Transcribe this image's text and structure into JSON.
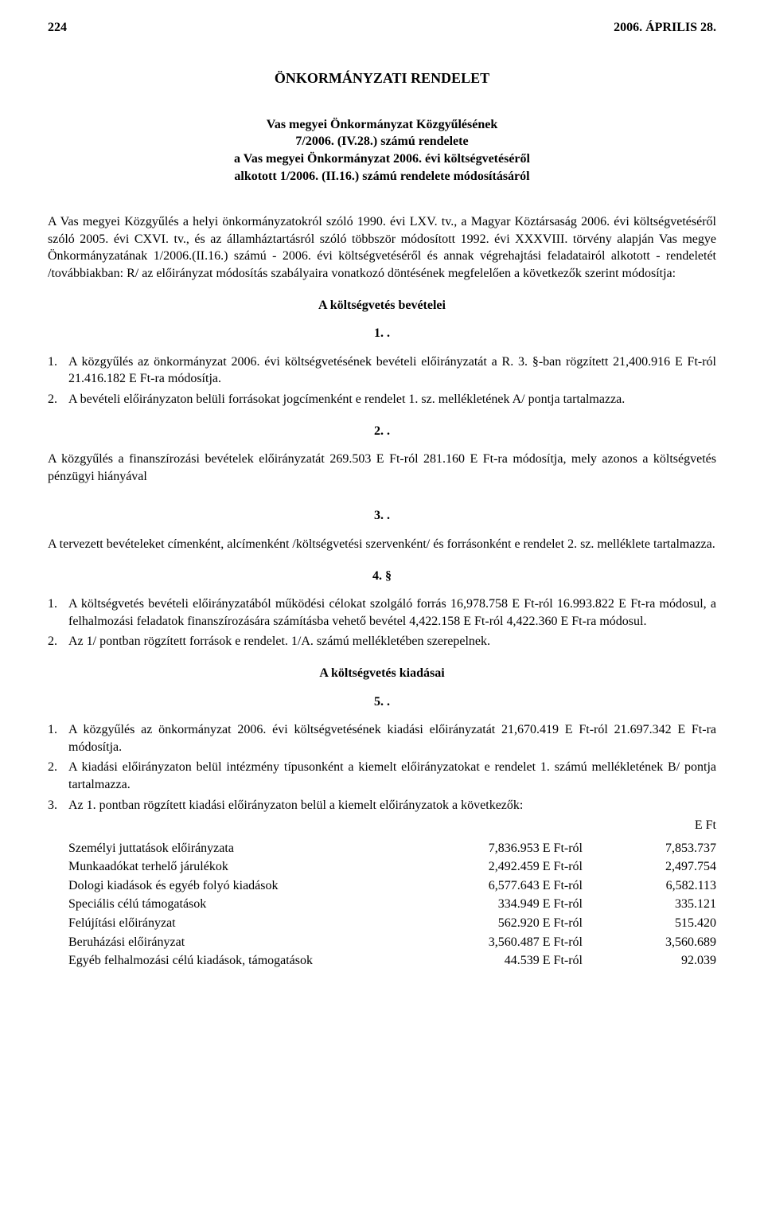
{
  "header": {
    "page_number": "224",
    "date": "2006. ÁPRILIS 28."
  },
  "title": "ÖNKORMÁNYZATI RENDELET",
  "subtitle": {
    "line1": "Vas megyei Önkormányzat Közgyűlésének",
    "line2": "7/2006. (IV.28.) számú rendelete",
    "line3": "a Vas megyei Önkormányzat 2006. évi költségvetéséről",
    "line4": "alkotott 1/2006. (II.16.) számú rendelete módosításáról"
  },
  "intro": "A Vas megyei Közgyűlés a helyi önkormányzatokról szóló 1990. évi LXV. tv., a Magyar Köztársaság 2006. évi költségvetéséről szóló 2005. évi CXVI. tv., és az államháztartásról szóló többször módosított 1992. évi XXXVIII. törvény alapján Vas megye Önkormányzatának 1/2006.(II.16.) számú - 2006. évi költségvetéséről és annak végrehajtási feladatairól alkotott - rendeletét /továbbiakban: R/ az előirányzat módosítás szabályaira vonatkozó döntésének megfelelően a következők szerint módosítja:",
  "headings": {
    "revenues": "A költségvetés bevételei",
    "expenditures": "A költségvetés kiadásai"
  },
  "sections": {
    "s1": "1. .",
    "s2": "2. .",
    "s3": "3. .",
    "s4": "4. §",
    "s5": "5. ."
  },
  "para1": {
    "item1_num": "1.",
    "item1_text": "A közgyűlés az önkormányzat 2006. évi költségvetésének bevételi előirányzatát a R. 3. §-ban rögzített 21,400.916 E Ft-ról 21.416.182 E Ft-ra módosítja.",
    "item2_num": "2.",
    "item2_text": "A bevételi előirányzaton belüli forrásokat jogcímenként e rendelet 1. sz. mellékletének A/ pontja tartalmazza."
  },
  "para2_text": "A közgyűlés a finanszírozási bevételek előirányzatát 269.503 E Ft-ról 281.160 E Ft-ra módosítja, mely azonos a költségvetés pénzügyi hiányával",
  "para3_text": "A tervezett bevételeket címenként, alcímenként /költségvetési szervenként/ és forrásonként e rendelet 2. sz. melléklete tartalmazza.",
  "para4": {
    "item1_num": "1.",
    "item1_text": "A költségvetés bevételi előirányzatából működési célokat szolgáló forrás 16,978.758 E Ft-ról 16.993.822 E Ft-ra módosul, a felhalmozási feladatok finanszírozására számításba vehető bevétel 4,422.158 E Ft-ról 4,422.360 E Ft-ra módosul.",
    "item2_num": "2.",
    "item2_text": "Az 1/ pontban rögzített források e rendelet. 1/A. számú mellékletében szerepelnek."
  },
  "para5": {
    "item1_num": "1.",
    "item1_text": "A közgyűlés az önkormányzat 2006. évi költségvetésének kiadási előirányzatát 21,670.419 E Ft-ról 21.697.342 E Ft-ra módosítja.",
    "item2_num": "2.",
    "item2_text": "A kiadási előirányzaton belül intézmény típusonként a kiemelt előirányzatokat e rendelet 1. számú mellékletének B/ pontja tartalmazza.",
    "item3_num": "3.",
    "item3_text": "Az 1. pontban rögzített kiadási előirányzaton belül a kiemelt előirányzatok a következők:"
  },
  "allocations": {
    "unit_header": "E Ft",
    "rows": [
      {
        "label": "Személyi juttatások előirányzata",
        "from": "7,836.953 E Ft-ról",
        "to": "7,853.737"
      },
      {
        "label": "Munkaadókat terhelő járulékok",
        "from": "2,492.459 E Ft-ról",
        "to": "2,497.754"
      },
      {
        "label": "Dologi kiadások és egyéb folyó kiadások",
        "from": "6,577.643 E Ft-ról",
        "to": "6,582.113"
      },
      {
        "label": "Speciális célú támogatások",
        "from": "334.949 E Ft-ról",
        "to": "335.121"
      },
      {
        "label": "Felújítási előirányzat",
        "from": "562.920 E Ft-ról",
        "to": "515.420"
      },
      {
        "label": "Beruházási előirányzat",
        "from": "3,560.487 E Ft-ról",
        "to": "3,560.689"
      },
      {
        "label": "Egyéb felhalmozási célú kiadások, támogatások",
        "from": "44.539 E Ft-ról",
        "to": "92.039"
      }
    ]
  }
}
